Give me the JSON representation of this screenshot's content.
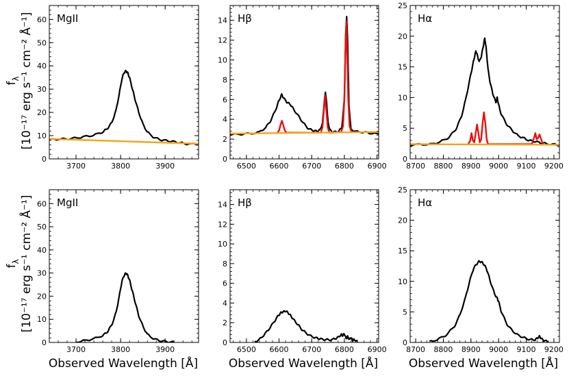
{
  "figure": {
    "ylabel_line1": "f",
    "ylabel_sub": "λ",
    "ylabel_line2": "[10⁻¹⁷ erg s⁻¹ cm⁻² Å⁻¹]",
    "xlabel": "Observed Wavelength [Å]"
  },
  "colors": {
    "data": "#000000",
    "model_lines": "#e8100f",
    "continuum": "#f5a31a"
  },
  "chart_data": [
    {
      "type": "line",
      "row": 0,
      "col": 0,
      "title": "MgII",
      "xlim": [
        3640,
        3975
      ],
      "ylim": [
        0,
        66
      ],
      "xticks": [
        3700,
        3800,
        3900
      ],
      "xtick_labels": [
        "3700",
        "3800",
        "3900"
      ],
      "yticks": [
        0,
        10,
        20,
        30,
        40,
        50,
        60
      ],
      "ytick_labels": [
        "0",
        "10",
        "20",
        "30",
        "40",
        "50",
        "60"
      ],
      "series": [
        {
          "name": "data",
          "color": "#000000",
          "x": [
            3640,
            3660,
            3680,
            3700,
            3720,
            3740,
            3760,
            3770,
            3780,
            3790,
            3797,
            3803,
            3808,
            3812,
            3816,
            3820,
            3826,
            3832,
            3840,
            3850,
            3860,
            3875,
            3890,
            3905,
            3920,
            3935,
            3950,
            3975
          ],
          "y": [
            8.2,
            8.5,
            8.6,
            9.0,
            9.6,
            10.2,
            11.6,
            13.0,
            15.5,
            21.0,
            28.0,
            34.5,
            37.2,
            37.8,
            37.0,
            35.0,
            30.5,
            26.0,
            20.5,
            15.0,
            11.5,
            9.2,
            8.2,
            7.8,
            7.4,
            6.9,
            6.4,
            6.2
          ]
        },
        {
          "name": "continuum",
          "color": "#f5a31a",
          "x": [
            3640,
            3975
          ],
          "y": [
            8.6,
            6.5
          ]
        }
      ]
    },
    {
      "type": "line",
      "row": 0,
      "col": 1,
      "title": "Hβ",
      "xlim": [
        6450,
        6905
      ],
      "ylim": [
        0,
        15.5
      ],
      "xticks": [
        6500,
        6600,
        6700,
        6800,
        6900
      ],
      "xtick_labels": [
        "6500",
        "6600",
        "6700",
        "6800",
        "6900"
      ],
      "yticks": [
        0,
        2,
        4,
        6,
        8,
        10,
        12,
        14
      ],
      "ytick_labels": [
        "0",
        "2",
        "4",
        "6",
        "8",
        "10",
        "12",
        "14"
      ],
      "series": [
        {
          "name": "data",
          "color": "#000000",
          "x": [
            6450,
            6480,
            6510,
            6540,
            6560,
            6575,
            6590,
            6600,
            6608,
            6615,
            6625,
            6635,
            6645,
            6660,
            6675,
            6690,
            6705,
            6715,
            6725,
            6733,
            6738,
            6742,
            6746,
            6750,
            6756,
            6765,
            6780,
            6792,
            6800,
            6804,
            6807,
            6810,
            6814,
            6820,
            6835,
            6860,
            6880,
            6905
          ],
          "y": [
            2.45,
            2.5,
            2.55,
            2.7,
            3.2,
            3.9,
            5.0,
            5.9,
            6.5,
            6.1,
            5.7,
            5.5,
            5.0,
            4.3,
            3.6,
            3.05,
            2.85,
            2.8,
            2.9,
            3.6,
            5.6,
            6.8,
            5.5,
            3.7,
            2.9,
            2.7,
            2.75,
            3.1,
            6.0,
            12.5,
            14.4,
            12.0,
            5.5,
            3.0,
            2.75,
            2.7,
            2.6,
            2.5
          ]
        },
        {
          "name": "model_lines",
          "color": "#e8100f",
          "x": [
            6595,
            6600,
            6605,
            6609,
            6613,
            6618,
            6623,
            6728,
            6733,
            6737,
            6741,
            6745,
            6749,
            6754,
            6790,
            6796,
            6800,
            6803,
            6806,
            6809,
            6812,
            6816,
            6822
          ],
          "y": [
            2.65,
            2.85,
            3.5,
            3.85,
            3.4,
            2.85,
            2.65,
            2.65,
            3.2,
            4.8,
            6.4,
            4.8,
            3.2,
            2.65,
            2.7,
            3.3,
            6.0,
            10.5,
            13.9,
            10.5,
            6.0,
            3.3,
            2.7
          ]
        },
        {
          "name": "continuum",
          "color": "#f5a31a",
          "x": [
            6450,
            6905
          ],
          "y": [
            2.55,
            2.72
          ]
        }
      ]
    },
    {
      "type": "line",
      "row": 0,
      "col": 2,
      "title": "Hα",
      "xlim": [
        8680,
        9220
      ],
      "ylim": [
        0,
        25
      ],
      "xticks": [
        8700,
        8800,
        8900,
        9000,
        9100,
        9200
      ],
      "xtick_labels": [
        "8700",
        "8800",
        "8900",
        "9000",
        "9100",
        "9200"
      ],
      "yticks": [
        0,
        5,
        10,
        15,
        20,
        25
      ],
      "ytick_labels": [
        "0",
        "5",
        "10",
        "15",
        "20",
        "25"
      ],
      "series": [
        {
          "name": "data",
          "color": "#000000",
          "x": [
            8680,
            8720,
            8760,
            8790,
            8820,
            8845,
            8865,
            8880,
            8895,
            8905,
            8912,
            8918,
            8923,
            8930,
            8938,
            8945,
            8950,
            8955,
            8962,
            8970,
            8980,
            8990,
            8995,
            9000,
            9010,
            9030,
            9050,
            9070,
            9090,
            9110,
            9130,
            9150,
            9170,
            9200,
            9220
          ],
          "y": [
            2.3,
            2.35,
            2.4,
            2.8,
            3.5,
            4.8,
            6.8,
            9.5,
            12.8,
            15.0,
            16.5,
            17.6,
            16.9,
            15.8,
            16.8,
            18.5,
            19.7,
            18.0,
            14.5,
            12.3,
            10.5,
            9.2,
            10.0,
            8.8,
            7.2,
            5.6,
            4.6,
            3.8,
            3.4,
            3.0,
            2.85,
            2.65,
            2.5,
            2.35,
            2.3
          ]
        },
        {
          "name": "model_lines",
          "color": "#e8100f",
          "x": [
            8890,
            8897,
            8902,
            8907,
            8912,
            8917,
            8922,
            8927,
            8932,
            8937,
            8942,
            8947,
            8952,
            8957,
            8962,
            9120,
            9128,
            9133,
            9138,
            9143,
            9148,
            9153,
            9160
          ],
          "y": [
            2.4,
            2.9,
            4.2,
            3.0,
            2.7,
            4.2,
            5.6,
            4.2,
            2.7,
            3.2,
            5.8,
            7.6,
            5.8,
            3.2,
            2.4,
            2.4,
            3.4,
            4.2,
            3.2,
            3.4,
            4.0,
            3.3,
            2.4
          ]
        },
        {
          "name": "continuum",
          "color": "#f5a31a",
          "x": [
            8680,
            9220
          ],
          "y": [
            2.4,
            2.3
          ]
        }
      ]
    },
    {
      "type": "line",
      "row": 1,
      "col": 0,
      "title": "MgII",
      "xlim": [
        3640,
        3975
      ],
      "ylim": [
        0,
        66
      ],
      "xticks": [
        3700,
        3800,
        3900
      ],
      "xtick_labels": [
        "3700",
        "3800",
        "3900"
      ],
      "yticks": [
        0,
        10,
        20,
        30,
        40,
        50,
        60
      ],
      "ytick_labels": [
        "0",
        "10",
        "20",
        "30",
        "40",
        "50",
        "60"
      ],
      "series": [
        {
          "name": "data",
          "color": "#000000",
          "x": [
            3700,
            3720,
            3740,
            3760,
            3770,
            3780,
            3790,
            3797,
            3803,
            3808,
            3812,
            3816,
            3820,
            3826,
            3832,
            3840,
            3850,
            3860,
            3875,
            3890,
            3905,
            3920
          ],
          "y": [
            0.2,
            0.8,
            1.6,
            3.0,
            4.5,
            7.5,
            13.0,
            20.0,
            26.5,
            29.0,
            30.0,
            29.0,
            27.0,
            22.5,
            18.0,
            12.0,
            7.0,
            3.5,
            1.5,
            0.7,
            0.3,
            0.1
          ]
        }
      ]
    },
    {
      "type": "line",
      "row": 1,
      "col": 1,
      "title": "Hβ",
      "xlim": [
        6450,
        6905
      ],
      "ylim": [
        0,
        15.5
      ],
      "xticks": [
        6500,
        6600,
        6700,
        6800,
        6900
      ],
      "xtick_labels": [
        "6500",
        "6600",
        "6700",
        "6800",
        "6900"
      ],
      "yticks": [
        0,
        2,
        4,
        6,
        8,
        10,
        12,
        14
      ],
      "ytick_labels": [
        "0",
        "2",
        "4",
        "6",
        "8",
        "10",
        "12",
        "14"
      ],
      "series": [
        {
          "name": "data",
          "color": "#000000",
          "x": [
            6525,
            6540,
            6555,
            6570,
            6585,
            6597,
            6605,
            6612,
            6620,
            6628,
            6636,
            6645,
            6658,
            6670,
            6685,
            6700,
            6715,
            6725,
            6740,
            6755,
            6770,
            6780,
            6790,
            6795,
            6800,
            6805,
            6810,
            6815,
            6820,
            6825,
            6830,
            6840
          ],
          "y": [
            0.05,
            0.3,
            0.8,
            1.4,
            2.1,
            2.7,
            3.0,
            3.1,
            3.2,
            3.0,
            2.7,
            2.3,
            1.8,
            1.3,
            0.9,
            0.6,
            0.45,
            0.35,
            0.3,
            0.25,
            0.35,
            0.5,
            0.8,
            0.7,
            0.9,
            0.4,
            0.6,
            0.3,
            0.5,
            0.2,
            0.3,
            0.1
          ]
        }
      ]
    },
    {
      "type": "line",
      "row": 1,
      "col": 2,
      "title": "Hα",
      "xlim": [
        8680,
        9220
      ],
      "ylim": [
        0,
        25
      ],
      "xticks": [
        8700,
        8800,
        8900,
        9000,
        9100,
        9200
      ],
      "xtick_labels": [
        "8700",
        "8800",
        "8900",
        "9000",
        "9100",
        "9200"
      ],
      "yticks": [
        0,
        5,
        10,
        15,
        20,
        25
      ],
      "ytick_labels": [
        "0",
        "5",
        "10",
        "15",
        "20",
        "25"
      ],
      "series": [
        {
          "name": "data",
          "color": "#000000",
          "x": [
            8750,
            8780,
            8810,
            8840,
            8860,
            8880,
            8895,
            8910,
            8920,
            8930,
            8940,
            8950,
            8960,
            8970,
            8985,
            8995,
            9000,
            9010,
            9030,
            9050,
            9070,
            9090,
            9110,
            9130,
            9140,
            9148,
            9155,
            9165,
            9180
          ],
          "y": [
            0.1,
            0.5,
            1.2,
            2.6,
            4.5,
            7.3,
            10.0,
            12.2,
            12.8,
            13.3,
            13.1,
            12.6,
            11.6,
            10.0,
            8.0,
            7.2,
            6.7,
            5.0,
            3.0,
            1.9,
            1.2,
            0.8,
            0.5,
            0.4,
            0.7,
            1.0,
            0.6,
            0.3,
            0.1
          ]
        }
      ]
    }
  ]
}
